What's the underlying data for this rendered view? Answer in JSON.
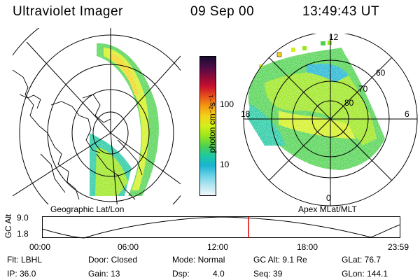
{
  "header": {
    "instrument": "Ultraviolet Imager",
    "date": "09 Sep 00",
    "time": "13:49:43 UT"
  },
  "left_map": {
    "caption": "Geographic Lat/Lon"
  },
  "right_map": {
    "caption": "Apex MLat/MLT",
    "mlt_labels": {
      "top": "12",
      "right": "6",
      "bottom": "0",
      "left": "18"
    },
    "mlat_labels": [
      "60",
      "70",
      "80"
    ]
  },
  "colorbar": {
    "unit_label": "photon cm⁻²s⁻¹",
    "tick_labels": [
      "100",
      "10"
    ],
    "colors": [
      "#1a0b2e",
      "#4a0c46",
      "#8a0a3a",
      "#c8102e",
      "#e8501a",
      "#f59a10",
      "#f5d21a",
      "#d2f01a",
      "#9ae61a",
      "#4ed24e",
      "#1ec8a0",
      "#1ab4d2",
      "#6ad2e6",
      "#b4e6f0",
      "#f0f8fa"
    ]
  },
  "timeline": {
    "ylabel": "GC Alt",
    "yticks": [
      "9.0",
      "1.8"
    ],
    "xticks": [
      "00:00",
      "06:00",
      "12:00",
      "18:00",
      "23:59"
    ],
    "current_time": "13:49:43"
  },
  "info": {
    "flt": "Flt: LBHL",
    "door": "Door: Closed",
    "mode": "Mode: Normal",
    "gcalt": "GC Alt: 9.1 Re",
    "glat": "GLat: 76.7",
    "ip": "IP: 36.0",
    "gain": "Gain: 13",
    "dsp_label": "Dsp:",
    "dsp_value": "4.0",
    "seq": "Seq: 39",
    "glon": "GLon: 144.1"
  }
}
